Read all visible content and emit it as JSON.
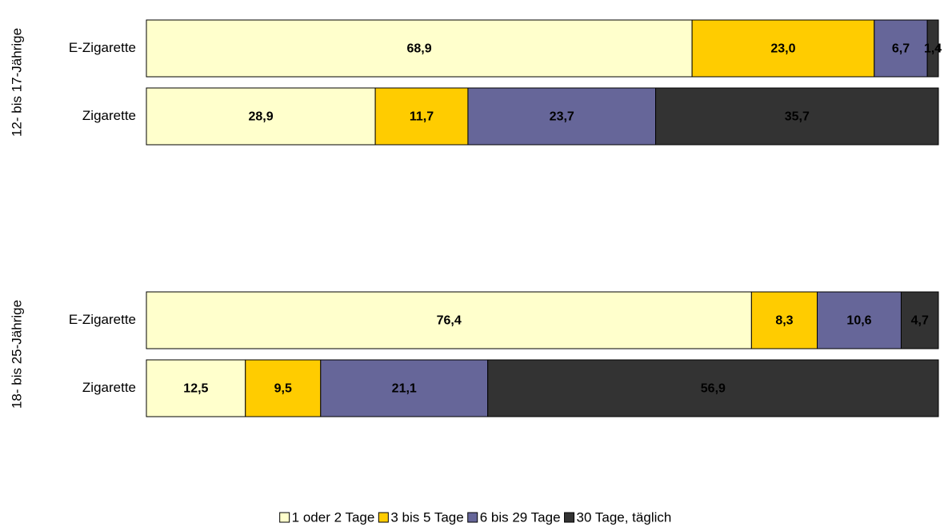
{
  "chart_data": [
    {
      "type": "bar",
      "orientation": "horizontal",
      "stacked": true,
      "ylabel": "12- bis 17-Jährige",
      "categories": [
        "E-Zigarette",
        "Zigarette"
      ],
      "xlim": [
        0,
        100
      ],
      "series": [
        {
          "color": "#ffffcc",
          "values": [
            68.9,
            28.9
          ],
          "value_labels": [
            "68,9",
            "28,9"
          ]
        },
        {
          "color": "#ffcc00",
          "values": [
            23.0,
            11.7
          ],
          "value_labels": [
            "23,0",
            "11,7"
          ]
        },
        {
          "color": "#666699",
          "values": [
            6.7,
            23.7
          ],
          "value_labels": [
            "6,7",
            "23,7"
          ]
        },
        {
          "color": "#333333",
          "values": [
            1.4,
            35.7
          ],
          "value_labels": [
            "1,4",
            "35,7"
          ]
        }
      ]
    },
    {
      "type": "bar",
      "orientation": "horizontal",
      "stacked": true,
      "ylabel": "18- bis 25-Jährige",
      "categories": [
        "E-Zigarette",
        "Zigarette"
      ],
      "xlim": [
        0,
        100
      ],
      "series": [
        {
          "name": "1 oder 2 Tage",
          "color": "#ffffcc",
          "values": [
            76.4,
            12.5
          ],
          "value_labels": [
            "76,4",
            "12,5"
          ]
        },
        {
          "name": "3 bis 5 Tage",
          "color": "#ffcc00",
          "values": [
            8.3,
            9.5
          ],
          "value_labels": [
            "8,3",
            "9,5"
          ]
        },
        {
          "name": "6 bis 29 Tage",
          "color": "#666699",
          "values": [
            10.6,
            21.1
          ],
          "value_labels": [
            "10,6",
            "21,1"
          ]
        },
        {
          "name": "30 Tage, täglich",
          "color": "#333333",
          "values": [
            4.7,
            56.9
          ],
          "value_labels": [
            "4,7",
            "56,9"
          ]
        }
      ]
    }
  ]
}
